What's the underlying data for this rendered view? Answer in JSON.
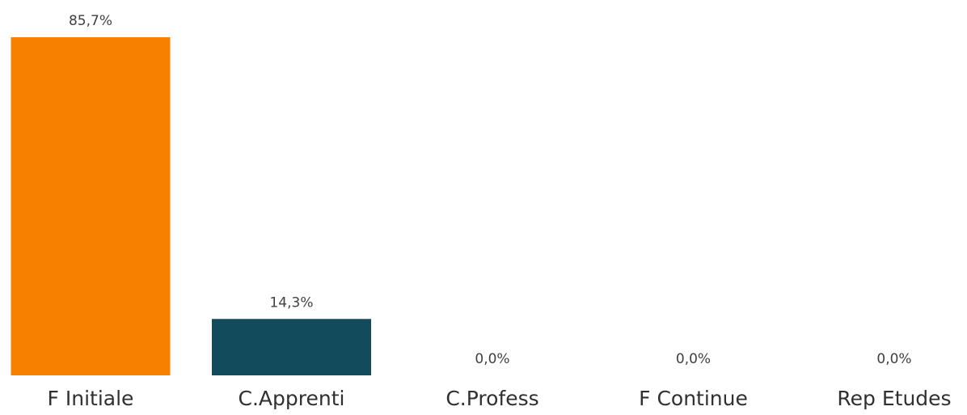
{
  "chart_data": {
    "type": "bar",
    "categories": [
      "F Initiale",
      "C.Apprenti",
      "C.Profess",
      "F Continue",
      "Rep Etudes"
    ],
    "values": [
      85.7,
      14.3,
      0.0,
      0.0,
      0.0
    ],
    "value_labels": [
      "85,7%",
      "14,3%",
      "0,0%",
      "0,0%",
      "0,0%"
    ],
    "colors": [
      "#f78000",
      "#124b5c",
      "#124b5c",
      "#124b5c",
      "#124b5c"
    ]
  }
}
